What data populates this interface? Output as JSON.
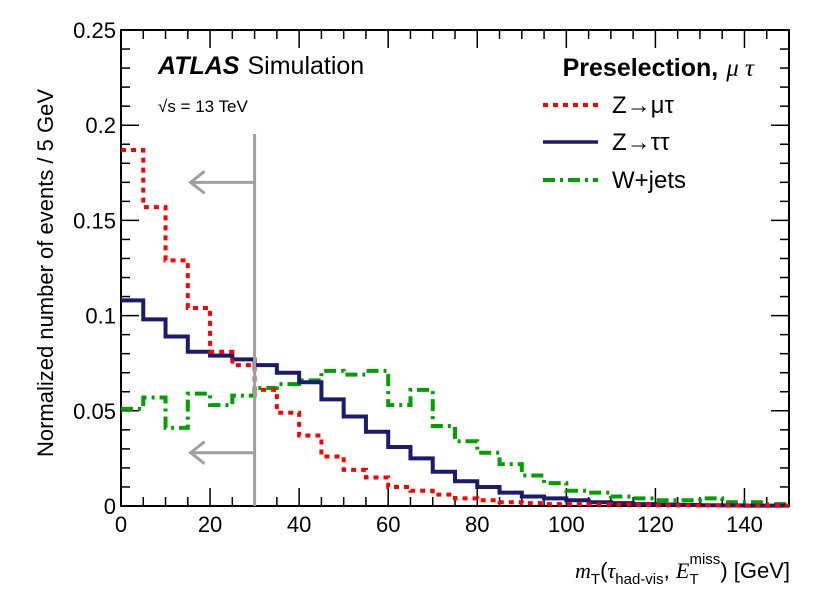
{
  "chart_data": {
    "type": "histogram",
    "title": "Preselection, μτ",
    "experiment": "ATLAS",
    "experiment_qualifier": "Simulation",
    "energy_label": "√s = 13 TeV",
    "ylabel": "Normalized number of events / 5 GeV",
    "xlabel": "m_T(τ_had-vis, E_T^miss) [GeV]",
    "xlim": [
      0,
      150
    ],
    "ylim": [
      0,
      0.25
    ],
    "bin_width": 5,
    "xticks": [
      "0",
      "20",
      "40",
      "60",
      "80",
      "100",
      "120",
      "140"
    ],
    "yticks": [
      "0",
      "0.05",
      "0.1",
      "0.15",
      "0.2",
      "0.25"
    ],
    "cut_value": 30,
    "cut_direction": "left",
    "legend_position": "top-right",
    "series": [
      {
        "name": "Z→μτ",
        "color": "#ff0000",
        "style": "dotted",
        "values": [
          0.187,
          0.157,
          0.129,
          0.104,
          0.081,
          0.074,
          0.061,
          0.049,
          0.037,
          0.026,
          0.019,
          0.015,
          0.01,
          0.008,
          0.006,
          0.004,
          0.003,
          0.002,
          0.0015,
          0.001,
          0.001,
          0.0008,
          0.0007,
          0.0005,
          0.0004,
          0.0003,
          0.0003,
          0.0002,
          0.0002,
          0.0001
        ]
      },
      {
        "name": "Z→ττ",
        "color": "#1a1a6e",
        "style": "solid",
        "values": [
          0.108,
          0.098,
          0.089,
          0.081,
          0.079,
          0.077,
          0.074,
          0.07,
          0.065,
          0.056,
          0.047,
          0.039,
          0.031,
          0.025,
          0.018,
          0.013,
          0.01,
          0.007,
          0.005,
          0.004,
          0.003,
          0.002,
          0.0015,
          0.001,
          0.0008,
          0.0006,
          0.0004,
          0.0003,
          0.0002,
          0.0002
        ]
      },
      {
        "name": "W+jets",
        "color": "#00a000",
        "style": "dashdot",
        "values": [
          0.051,
          0.057,
          0.041,
          0.059,
          0.053,
          0.058,
          0.062,
          0.064,
          0.066,
          0.071,
          0.069,
          0.071,
          0.053,
          0.061,
          0.042,
          0.034,
          0.028,
          0.022,
          0.016,
          0.012,
          0.008,
          0.007,
          0.005,
          0.004,
          0.003,
          0.003,
          0.004,
          0.002,
          0.002,
          0.001
        ]
      }
    ]
  }
}
